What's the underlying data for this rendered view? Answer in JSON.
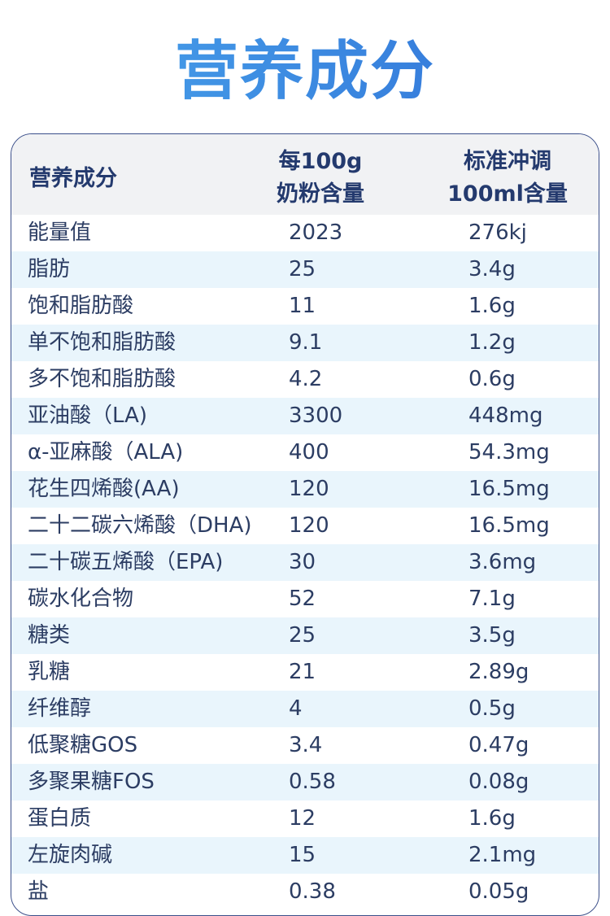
{
  "title": "营养成分",
  "table": {
    "header": {
      "name": "营养成分",
      "col1_line1": "每100g",
      "col1_line2": "奶粉含量",
      "col2_line1": "标准冲调",
      "col2_line2": "100ml含量"
    },
    "rows": [
      {
        "name": "能量值",
        "per100g": "2023",
        "per100ml": "276kj"
      },
      {
        "name": "脂肪",
        "per100g": "25",
        "per100ml": "3.4g"
      },
      {
        "name": "饱和脂肪酸",
        "per100g": "11",
        "per100ml": "1.6g"
      },
      {
        "name": "单不饱和脂肪酸",
        "per100g": "9.1",
        "per100ml": "1.2g"
      },
      {
        "name": "多不饱和脂肪酸",
        "per100g": "4.2",
        "per100ml": "0.6g"
      },
      {
        "name": "亚油酸（LA)",
        "per100g": "3300",
        "per100ml": "448mg"
      },
      {
        "name": "α-亚麻酸（ALA)",
        "per100g": "400",
        "per100ml": "54.3mg"
      },
      {
        "name": "花生四烯酸(AA)",
        "per100g": "120",
        "per100ml": "16.5mg"
      },
      {
        "name": "二十二碳六烯酸（DHA)",
        "per100g": "120",
        "per100ml": "16.5mg"
      },
      {
        "name": "二十碳五烯酸（EPA)",
        "per100g": "30",
        "per100ml": "3.6mg"
      },
      {
        "name": "碳水化合物",
        "per100g": "52",
        "per100ml": "7.1g"
      },
      {
        "name": "糖类",
        "per100g": "25",
        "per100ml": "3.5g"
      },
      {
        "name": "乳糖",
        "per100g": "21",
        "per100ml": "2.89g"
      },
      {
        "name": "纤维醇",
        "per100g": "4",
        "per100ml": "0.5g"
      },
      {
        "name": "低聚糖GOS",
        "per100g": "3.4",
        "per100ml": "0.47g"
      },
      {
        "name": "多聚果糖FOS",
        "per100g": "0.58",
        "per100ml": "0.08g"
      },
      {
        "name": "蛋白质",
        "per100g": "12",
        "per100ml": "1.6g"
      },
      {
        "name": "左旋肉碱",
        "per100g": "15",
        "per100ml": "2.1mg"
      },
      {
        "name": "盐",
        "per100g": "0.38",
        "per100ml": "0.05g"
      }
    ]
  }
}
